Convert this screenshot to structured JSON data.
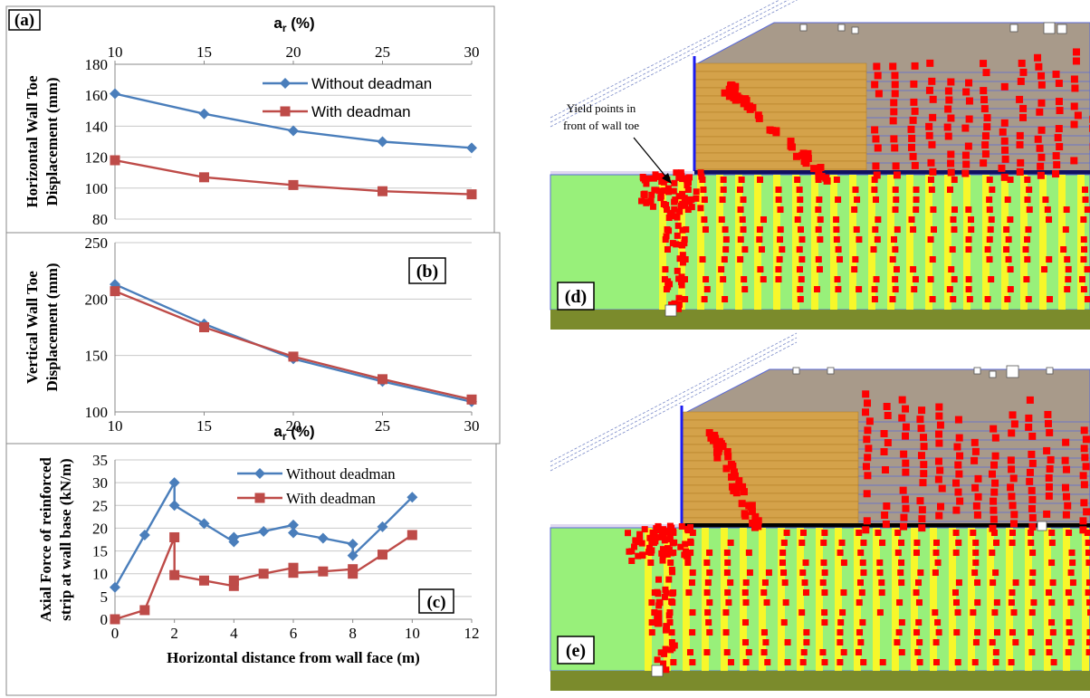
{
  "colors": {
    "without_deadman": "#4a7ebb",
    "with_deadman": "#be4b48",
    "yield_point": "#ff0000",
    "reinforced_zone": "#98f07a",
    "soil_strip": "#f7f72a",
    "backfill_top": "#a89a8a",
    "wall_block": "#d4a24a",
    "foundation": "#7b8b2c",
    "wall_face": "#1c1cf0"
  },
  "chart_data": [
    {
      "panel": "(a)",
      "type": "line",
      "xlabel": "ar (%)",
      "xlabel_main": "a",
      "xlabel_sub": "r",
      "xlabel_tail": " (%)",
      "ylabel_lines": [
        "Horizontal Wall Toe",
        "Displacement (mm)"
      ],
      "x": [
        10,
        15,
        20,
        25,
        30
      ],
      "xlim": [
        10,
        30
      ],
      "ylim": [
        80,
        180
      ],
      "yticks": [
        80,
        100,
        120,
        140,
        160,
        180
      ],
      "xticks": [
        10,
        15,
        20,
        25,
        30
      ],
      "x_axis_position": "top",
      "legend_position": "top-right",
      "series": [
        {
          "name": "Without deadman",
          "values": [
            161,
            148,
            137,
            130,
            126
          ]
        },
        {
          "name": "With deadman",
          "values": [
            118,
            107,
            102,
            98,
            96
          ]
        }
      ]
    },
    {
      "panel": "(b)",
      "type": "line",
      "xlabel": "ar (%)",
      "xlabel_main": "a",
      "xlabel_sub": "r",
      "xlabel_tail": " (%)",
      "ylabel_lines": [
        "Vertical Wall Toe",
        "Displacement (mm)"
      ],
      "x": [
        10,
        15,
        20,
        25,
        30
      ],
      "xlim": [
        10,
        30
      ],
      "ylim": [
        100,
        250
      ],
      "yticks": [
        100,
        150,
        200,
        250
      ],
      "xticks": [
        10,
        15,
        20,
        25,
        30
      ],
      "x_axis_position": "bottom",
      "series": [
        {
          "name": "Without deadman",
          "values": [
            213,
            178,
            147,
            127,
            109
          ]
        },
        {
          "name": "With deadman",
          "values": [
            207,
            175,
            149,
            129,
            111
          ]
        }
      ]
    },
    {
      "panel": "(c)",
      "type": "line",
      "xlabel": "Horizontal distance from wall face (m)",
      "ylabel_lines": [
        "Axial Force of reinforced",
        "strip at wall base (kN/m)"
      ],
      "xlim": [
        0,
        12
      ],
      "ylim": [
        0,
        35
      ],
      "yticks": [
        0,
        5,
        10,
        15,
        20,
        25,
        30,
        35
      ],
      "xticks": [
        0,
        2,
        4,
        6,
        8,
        10,
        12
      ],
      "x_axis_position": "bottom",
      "legend_position": "top-right",
      "series": [
        {
          "name": "Without deadman",
          "points": [
            [
              0,
              7
            ],
            [
              1,
              18.5
            ],
            [
              2,
              30
            ],
            [
              2,
              25
            ],
            [
              3,
              21
            ],
            [
              4,
              17
            ],
            [
              4,
              18
            ],
            [
              5,
              19.3
            ],
            [
              6,
              20.7
            ],
            [
              6,
              19
            ],
            [
              7,
              17.8
            ],
            [
              8,
              16.5
            ],
            [
              8,
              14
            ],
            [
              9,
              20.3
            ],
            [
              10,
              26.8
            ]
          ]
        },
        {
          "name": "With deadman",
          "points": [
            [
              0,
              0
            ],
            [
              1,
              2
            ],
            [
              2,
              18
            ],
            [
              2,
              9.7
            ],
            [
              3,
              8.5
            ],
            [
              4,
              7.3
            ],
            [
              4,
              8.5
            ],
            [
              5,
              10
            ],
            [
              6,
              11.3
            ],
            [
              6,
              10.2
            ],
            [
              7,
              10.5
            ],
            [
              8,
              11
            ],
            [
              8,
              10
            ],
            [
              9,
              14.2
            ],
            [
              10,
              18.5
            ]
          ]
        }
      ]
    }
  ],
  "panel_d": {
    "label": "(d)",
    "annotation_line1": "Yield points in",
    "annotation_line2": "front of wall toe"
  },
  "panel_e": {
    "label": "(e)"
  }
}
